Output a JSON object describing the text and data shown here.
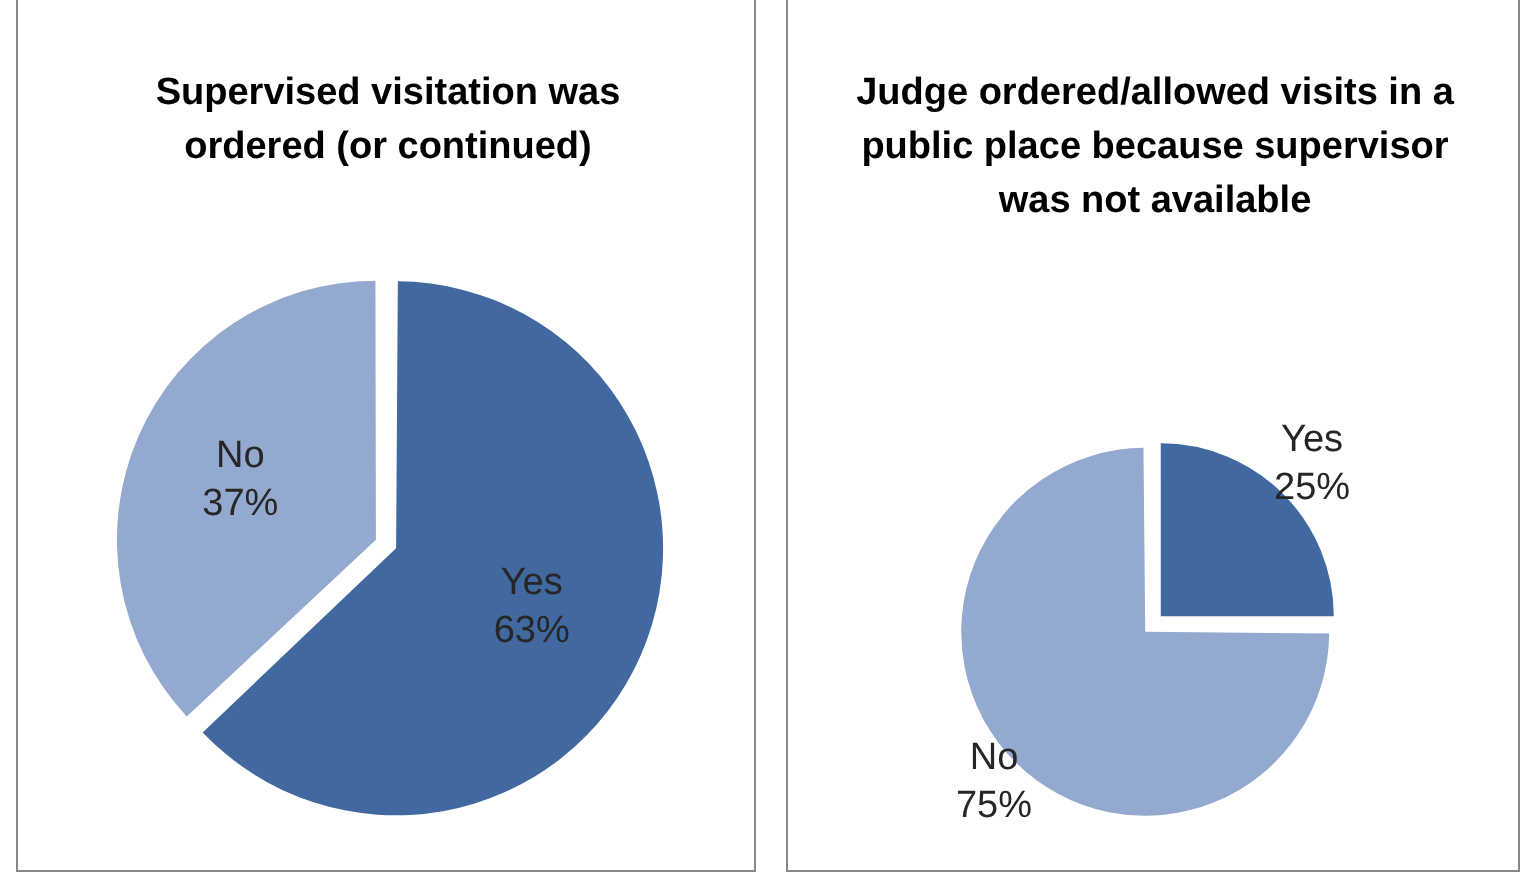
{
  "chart_data": [
    {
      "type": "pie",
      "title": "Supervised visitation was ordered (or continued)",
      "categories": [
        "Yes",
        "No"
      ],
      "values": [
        63,
        37
      ],
      "colors": [
        "#41699f",
        "#93a9cf"
      ],
      "value_labels": [
        "63%",
        "37%"
      ]
    },
    {
      "type": "pie",
      "title": "Judge ordered/allowed visits in a public place because supervisor was not available",
      "categories": [
        "Yes",
        "No"
      ],
      "values": [
        25,
        75
      ],
      "colors": [
        "#41699f",
        "#93a9cf"
      ],
      "value_labels": [
        "25%",
        "75%"
      ]
    }
  ]
}
